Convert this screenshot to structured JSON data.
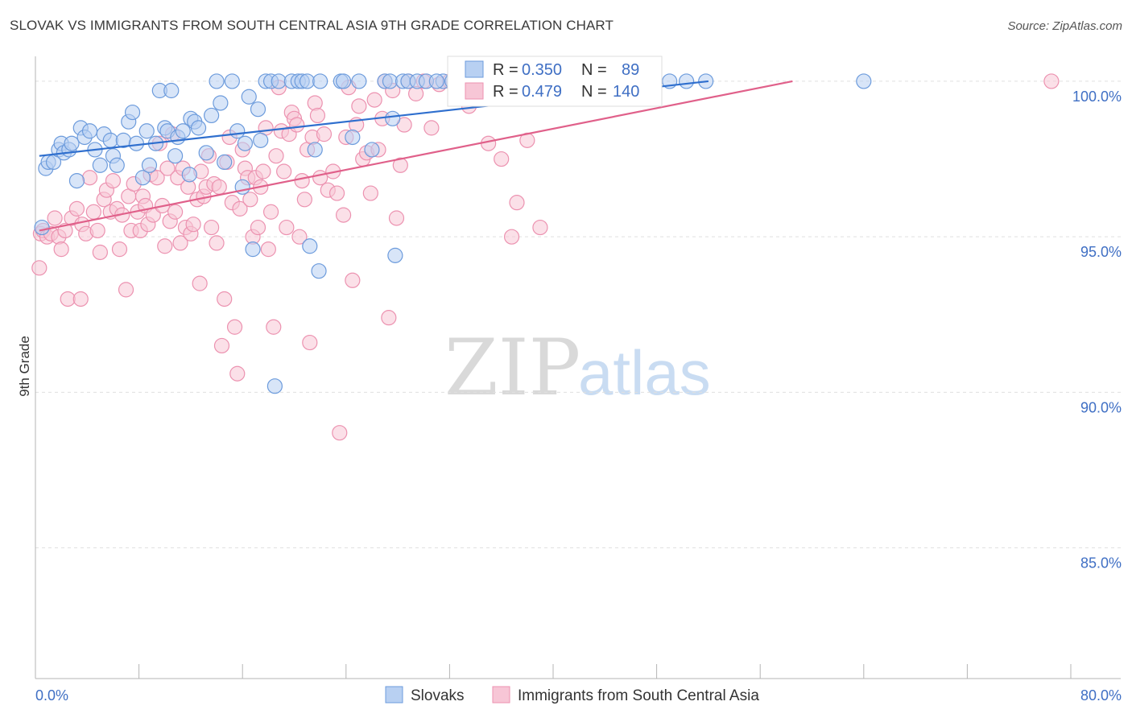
{
  "title": "SLOVAK VS IMMIGRANTS FROM SOUTH CENTRAL ASIA 9TH GRADE CORRELATION CHART",
  "source": "Source: ZipAtlas.com",
  "watermark": {
    "zip": "ZIP",
    "atlas": "atlas"
  },
  "colors": {
    "blue_fill": "#b8d0f2",
    "blue_stroke": "#6c9bdc",
    "blue_line": "#2f6fce",
    "pink_fill": "#f7c6d6",
    "pink_stroke": "#ec92b0",
    "pink_line": "#e0608a",
    "axis_text": "#3f6fc4",
    "grid": "#e0e0e0"
  },
  "legend_box": [
    {
      "r_label": "R =",
      "r_value": "0.350",
      "n_label": "N =",
      "n_value": "89"
    },
    {
      "r_label": "R =",
      "r_value": "0.479",
      "n_label": "N =",
      "n_value": "140"
    }
  ],
  "chart_data": {
    "type": "scatter",
    "title": "SLOVAK VS IMMIGRANTS FROM SOUTH CENTRAL ASIA 9TH GRADE CORRELATION CHART",
    "xlabel": "",
    "ylabel": "9th Grade",
    "xlim": [
      0,
      80
    ],
    "ylim": [
      80.8,
      100.8
    ],
    "x_tick_labels": [
      "0.0%",
      "80.0%"
    ],
    "y_ticks": [
      100,
      95,
      90,
      85
    ],
    "y_tick_labels": [
      "100.0%",
      "95.0%",
      "90.0%",
      "85.0%"
    ],
    "grid": true,
    "legend": "bottom",
    "series": [
      {
        "name": "Slovaks",
        "r": 0.35,
        "n": 89,
        "trend": [
          [
            0.3,
            97.6
          ],
          [
            52,
            100.0
          ]
        ],
        "points": [
          [
            0.5,
            95.3
          ],
          [
            0.8,
            97.2
          ],
          [
            1.0,
            97.4
          ],
          [
            1.4,
            97.4
          ],
          [
            1.8,
            97.8
          ],
          [
            2.0,
            98.0
          ],
          [
            2.2,
            97.7
          ],
          [
            2.6,
            97.8
          ],
          [
            2.8,
            98.0
          ],
          [
            3.2,
            96.8
          ],
          [
            3.5,
            98.5
          ],
          [
            3.8,
            98.2
          ],
          [
            4.2,
            98.4
          ],
          [
            4.6,
            97.8
          ],
          [
            5.0,
            97.3
          ],
          [
            5.3,
            98.3
          ],
          [
            5.8,
            98.1
          ],
          [
            6.0,
            97.6
          ],
          [
            6.3,
            97.3
          ],
          [
            6.8,
            98.1
          ],
          [
            7.2,
            98.7
          ],
          [
            7.5,
            99.0
          ],
          [
            7.8,
            98.0
          ],
          [
            8.3,
            96.9
          ],
          [
            8.6,
            98.4
          ],
          [
            8.8,
            97.3
          ],
          [
            9.3,
            98.0
          ],
          [
            9.6,
            99.7
          ],
          [
            10.0,
            98.5
          ],
          [
            10.2,
            98.4
          ],
          [
            10.5,
            99.7
          ],
          [
            10.8,
            97.6
          ],
          [
            11.0,
            98.2
          ],
          [
            11.4,
            98.4
          ],
          [
            11.9,
            97.0
          ],
          [
            12.0,
            98.8
          ],
          [
            12.3,
            98.7
          ],
          [
            12.6,
            98.5
          ],
          [
            13.2,
            97.7
          ],
          [
            13.6,
            98.9
          ],
          [
            14.0,
            100.0
          ],
          [
            14.3,
            99.3
          ],
          [
            14.6,
            97.4
          ],
          [
            15.2,
            100.0
          ],
          [
            15.6,
            98.4
          ],
          [
            16.0,
            96.6
          ],
          [
            16.2,
            98.0
          ],
          [
            16.5,
            99.5
          ],
          [
            16.8,
            94.6
          ],
          [
            17.2,
            99.1
          ],
          [
            17.4,
            98.1
          ],
          [
            17.8,
            100.0
          ],
          [
            18.2,
            100.0
          ],
          [
            18.8,
            100.0
          ],
          [
            18.5,
            90.2
          ],
          [
            19.8,
            100.0
          ],
          [
            20.3,
            100.0
          ],
          [
            20.6,
            100.0
          ],
          [
            21.0,
            100.0
          ],
          [
            21.2,
            94.7
          ],
          [
            21.6,
            97.8
          ],
          [
            21.9,
            93.9
          ],
          [
            22.0,
            100.0
          ],
          [
            23.6,
            100.0
          ],
          [
            23.8,
            100.0
          ],
          [
            24.5,
            98.2
          ],
          [
            25.0,
            100.0
          ],
          [
            26.0,
            97.8
          ],
          [
            27.0,
            100.0
          ],
          [
            27.4,
            100.0
          ],
          [
            27.6,
            98.8
          ],
          [
            27.8,
            94.4
          ],
          [
            28.4,
            100.0
          ],
          [
            28.8,
            100.0
          ],
          [
            29.5,
            100.0
          ],
          [
            30.2,
            100.0
          ],
          [
            31.5,
            100.0
          ],
          [
            32.2,
            100.0
          ],
          [
            33.0,
            100.0
          ],
          [
            36.2,
            100.0
          ],
          [
            38.0,
            100.0
          ],
          [
            39.5,
            100.0
          ],
          [
            41.2,
            99.7
          ],
          [
            43.5,
            100.0
          ],
          [
            49.0,
            100.0
          ],
          [
            50.3,
            100.0
          ],
          [
            51.8,
            100.0
          ],
          [
            64.0,
            100.0
          ],
          [
            31.0,
            100.0
          ]
        ]
      },
      {
        "name": "Immigrants from South Central Asia",
        "r": 0.479,
        "n": 140,
        "trend": [
          [
            0.3,
            95.2
          ],
          [
            58.5,
            100.0
          ]
        ],
        "points": [
          [
            0.3,
            94.0
          ],
          [
            0.4,
            95.1
          ],
          [
            0.6,
            95.2
          ],
          [
            0.9,
            95.0
          ],
          [
            1.2,
            95.1
          ],
          [
            1.5,
            95.6
          ],
          [
            1.8,
            95.0
          ],
          [
            2.0,
            94.6
          ],
          [
            2.3,
            95.2
          ],
          [
            2.5,
            93.0
          ],
          [
            2.8,
            95.6
          ],
          [
            3.2,
            95.9
          ],
          [
            3.5,
            93.0
          ],
          [
            3.6,
            95.4
          ],
          [
            3.9,
            95.1
          ],
          [
            4.2,
            96.9
          ],
          [
            4.5,
            95.8
          ],
          [
            4.8,
            95.2
          ],
          [
            5.0,
            94.5
          ],
          [
            5.3,
            96.2
          ],
          [
            5.5,
            96.5
          ],
          [
            5.8,
            95.8
          ],
          [
            6.0,
            96.8
          ],
          [
            6.3,
            95.9
          ],
          [
            6.5,
            94.6
          ],
          [
            6.7,
            95.7
          ],
          [
            7.0,
            93.3
          ],
          [
            7.2,
            96.3
          ],
          [
            7.4,
            95.2
          ],
          [
            7.6,
            96.7
          ],
          [
            7.9,
            95.8
          ],
          [
            8.1,
            95.2
          ],
          [
            8.3,
            96.3
          ],
          [
            8.5,
            96.0
          ],
          [
            8.7,
            95.4
          ],
          [
            8.9,
            97.0
          ],
          [
            9.1,
            95.7
          ],
          [
            9.4,
            96.9
          ],
          [
            9.6,
            98.0
          ],
          [
            9.8,
            96.0
          ],
          [
            10.0,
            94.7
          ],
          [
            10.2,
            97.2
          ],
          [
            10.4,
            95.5
          ],
          [
            10.6,
            98.3
          ],
          [
            10.8,
            95.8
          ],
          [
            11.0,
            96.9
          ],
          [
            11.2,
            94.8
          ],
          [
            11.4,
            97.2
          ],
          [
            11.6,
            95.3
          ],
          [
            11.8,
            96.6
          ],
          [
            12.0,
            95.1
          ],
          [
            12.2,
            95.4
          ],
          [
            12.5,
            96.2
          ],
          [
            12.7,
            93.5
          ],
          [
            12.8,
            97.1
          ],
          [
            13.0,
            96.3
          ],
          [
            13.2,
            96.6
          ],
          [
            13.4,
            97.6
          ],
          [
            13.6,
            95.3
          ],
          [
            13.8,
            96.7
          ],
          [
            14.0,
            94.8
          ],
          [
            14.2,
            96.6
          ],
          [
            14.4,
            91.5
          ],
          [
            14.6,
            93.0
          ],
          [
            14.8,
            97.4
          ],
          [
            15.0,
            98.2
          ],
          [
            15.2,
            96.1
          ],
          [
            15.4,
            92.1
          ],
          [
            15.6,
            90.6
          ],
          [
            15.8,
            95.9
          ],
          [
            16.0,
            97.8
          ],
          [
            16.2,
            97.2
          ],
          [
            16.4,
            96.9
          ],
          [
            16.6,
            96.2
          ],
          [
            16.8,
            95.0
          ],
          [
            17.0,
            96.9
          ],
          [
            17.2,
            95.3
          ],
          [
            17.4,
            96.6
          ],
          [
            17.6,
            97.1
          ],
          [
            17.8,
            98.5
          ],
          [
            18.0,
            94.6
          ],
          [
            18.2,
            95.8
          ],
          [
            18.4,
            92.1
          ],
          [
            18.6,
            97.6
          ],
          [
            18.8,
            99.8
          ],
          [
            19.0,
            98.4
          ],
          [
            19.2,
            97.1
          ],
          [
            19.4,
            95.3
          ],
          [
            19.6,
            98.3
          ],
          [
            19.8,
            99.0
          ],
          [
            20.0,
            98.8
          ],
          [
            20.2,
            98.6
          ],
          [
            20.4,
            95.0
          ],
          [
            20.6,
            96.8
          ],
          [
            20.8,
            96.2
          ],
          [
            21.0,
            97.8
          ],
          [
            21.2,
            91.6
          ],
          [
            21.4,
            98.2
          ],
          [
            21.6,
            99.3
          ],
          [
            21.8,
            98.9
          ],
          [
            22.0,
            96.9
          ],
          [
            22.3,
            98.3
          ],
          [
            22.6,
            96.5
          ],
          [
            23.0,
            97.1
          ],
          [
            23.3,
            96.4
          ],
          [
            23.5,
            88.7
          ],
          [
            23.8,
            95.7
          ],
          [
            24.0,
            98.2
          ],
          [
            24.2,
            99.8
          ],
          [
            24.5,
            93.6
          ],
          [
            24.8,
            98.6
          ],
          [
            25.0,
            99.2
          ],
          [
            25.3,
            97.5
          ],
          [
            25.6,
            97.7
          ],
          [
            25.9,
            96.4
          ],
          [
            26.2,
            99.4
          ],
          [
            26.5,
            97.8
          ],
          [
            26.8,
            98.8
          ],
          [
            27.0,
            100.0
          ],
          [
            27.3,
            92.4
          ],
          [
            27.6,
            99.7
          ],
          [
            27.9,
            95.6
          ],
          [
            28.2,
            97.3
          ],
          [
            28.5,
            98.6
          ],
          [
            28.8,
            100.0
          ],
          [
            29.4,
            99.6
          ],
          [
            30.0,
            100.0
          ],
          [
            30.6,
            98.5
          ],
          [
            31.2,
            99.9
          ],
          [
            32.0,
            100.0
          ],
          [
            33.5,
            99.2
          ],
          [
            35.0,
            98.0
          ],
          [
            36.0,
            97.5
          ],
          [
            36.8,
            95.0
          ],
          [
            37.2,
            96.1
          ],
          [
            38.0,
            98.1
          ],
          [
            39.0,
            95.3
          ],
          [
            41.0,
            99.5
          ],
          [
            43.5,
            100.0
          ],
          [
            78.5,
            100.0
          ]
        ]
      }
    ]
  },
  "bottom_legend": {
    "items": [
      {
        "label": "Slovaks",
        "color": "blue"
      },
      {
        "label": "Immigrants from South Central Asia",
        "color": "pink"
      }
    ]
  }
}
